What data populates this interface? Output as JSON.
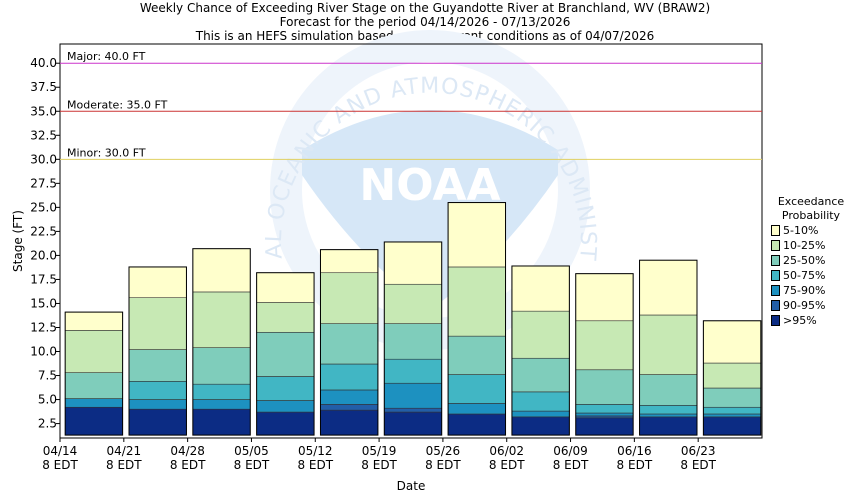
{
  "title": {
    "line1": "Weekly Chance of Exceeding River Stage on the Guyandotte River at Branchland, WV (BRAW2)",
    "line2": "Forecast for the period 04/14/2026 - 07/13/2026",
    "line3": "This is an HEFS simulation based on the current conditions as of 04/07/2026"
  },
  "watermark": {
    "text": "NATIONAL OCEANIC AND ATMOSPHERIC ADMINISTRATION",
    "logo_text": "NOAA"
  },
  "legend": {
    "title_line1": "Exceedance",
    "title_line2": "Probability",
    "items": [
      {
        "label": "5-10%",
        "color": "#ffffcc"
      },
      {
        "label": "10-25%",
        "color": "#c7e9b4"
      },
      {
        "label": "25-50%",
        "color": "#7fcdbb"
      },
      {
        "label": "50-75%",
        "color": "#41b6c4"
      },
      {
        "label": "75-90%",
        "color": "#1d91c0"
      },
      {
        "label": "90-95%",
        "color": "#225ea8"
      },
      {
        "label": ">95%",
        "color": "#0c2c84"
      }
    ]
  },
  "chart_data": {
    "type": "bar",
    "subtype": "stacked-range",
    "xlabel": "Date",
    "ylabel": "Stage (FT)",
    "ylim": [
      1.0,
      42.0
    ],
    "yticks": [
      "2.5",
      "5.0",
      "7.5",
      "10.0",
      "12.5",
      "15.0",
      "17.5",
      "20.0",
      "22.5",
      "25.0",
      "27.5",
      "30.0",
      "32.5",
      "35.0",
      "37.5",
      "40.0"
    ],
    "x_tick_labels": [
      {
        "date": "04/14",
        "tz": "8 EDT"
      },
      {
        "date": "04/21",
        "tz": "8 EDT"
      },
      {
        "date": "04/28",
        "tz": "8 EDT"
      },
      {
        "date": "05/05",
        "tz": "8 EDT"
      },
      {
        "date": "05/12",
        "tz": "8 EDT"
      },
      {
        "date": "05/19",
        "tz": "8 EDT"
      },
      {
        "date": "05/26",
        "tz": "8 EDT"
      },
      {
        "date": "06/02",
        "tz": "8 EDT"
      },
      {
        "date": "06/09",
        "tz": "8 EDT"
      },
      {
        "date": "06/16",
        "tz": "8 EDT"
      },
      {
        "date": "06/23",
        "tz": "8 EDT"
      }
    ],
    "thresholds": [
      {
        "label": "Major: 40.0 FT",
        "value": 40.0,
        "color": "#cc33cc"
      },
      {
        "label": "Moderate: 35.0 FT",
        "value": 35.0,
        "color": "#cc3333"
      },
      {
        "label": "Minor: 30.0 FT",
        "value": 30.0,
        "color": "#e0d060"
      }
    ],
    "bands": [
      ">95%",
      "90-95%",
      "75-90%",
      "50-75%",
      "25-50%",
      "10-25%",
      "5-10%"
    ],
    "bars": [
      {
        "week": "04/14",
        "levels": [
          1.3,
          4.2,
          4.2,
          5.1,
          5.1,
          7.8,
          12.2,
          14.1
        ]
      },
      {
        "week": "04/21",
        "levels": [
          1.3,
          4.0,
          4.0,
          5.0,
          6.9,
          10.2,
          15.6,
          18.8
        ]
      },
      {
        "week": "04/28",
        "levels": [
          1.3,
          4.0,
          4.0,
          5.0,
          6.6,
          10.4,
          16.2,
          20.7
        ]
      },
      {
        "week": "05/05",
        "levels": [
          1.3,
          3.7,
          3.7,
          4.9,
          7.4,
          12.0,
          15.1,
          18.2
        ]
      },
      {
        "week": "05/12",
        "levels": [
          1.3,
          3.9,
          4.5,
          6.0,
          8.7,
          12.9,
          18.2,
          20.6
        ]
      },
      {
        "week": "05/19",
        "levels": [
          1.3,
          3.7,
          4.1,
          6.7,
          9.2,
          12.9,
          17.0,
          21.4
        ]
      },
      {
        "week": "05/26",
        "levels": [
          1.3,
          3.5,
          3.5,
          4.6,
          7.6,
          11.6,
          18.8,
          25.5
        ]
      },
      {
        "week": "06/02",
        "levels": [
          1.3,
          3.2,
          3.2,
          3.8,
          5.8,
          9.3,
          14.2,
          18.9
        ]
      },
      {
        "week": "06/09",
        "levels": [
          1.3,
          3.1,
          3.3,
          3.6,
          4.5,
          8.1,
          13.2,
          18.1
        ]
      },
      {
        "week": "06/16",
        "levels": [
          1.3,
          3.2,
          3.2,
          3.5,
          4.4,
          7.6,
          13.8,
          19.5
        ]
      },
      {
        "week": "06/23",
        "levels": [
          1.3,
          3.2,
          3.2,
          3.5,
          4.2,
          6.2,
          8.8,
          13.2
        ]
      }
    ]
  }
}
